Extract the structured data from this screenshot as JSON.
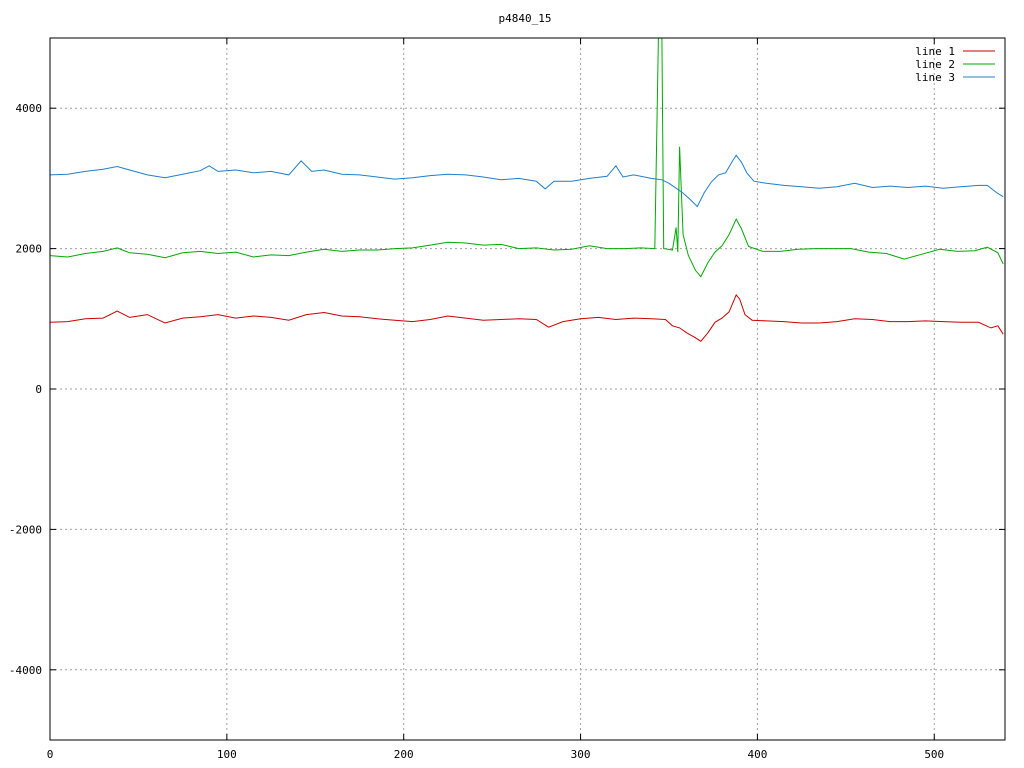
{
  "chart_data": {
    "type": "line",
    "title": "p4840_15",
    "xlabel": "",
    "ylabel": "",
    "xlim": [
      0,
      540
    ],
    "ylim": [
      -5000,
      5000
    ],
    "x_ticks": [
      0,
      100,
      200,
      300,
      400,
      500
    ],
    "y_ticks": [
      -4000,
      -2000,
      0,
      2000,
      4000
    ],
    "grid": true,
    "legend_position": "top-right",
    "series": [
      {
        "name": "line 1",
        "color": "#cc0000",
        "points": [
          [
            0,
            950
          ],
          [
            10,
            960
          ],
          [
            20,
            1000
          ],
          [
            30,
            1010
          ],
          [
            38,
            1110
          ],
          [
            45,
            1020
          ],
          [
            55,
            1060
          ],
          [
            65,
            940
          ],
          [
            75,
            1010
          ],
          [
            85,
            1030
          ],
          [
            95,
            1060
          ],
          [
            105,
            1010
          ],
          [
            115,
            1040
          ],
          [
            125,
            1020
          ],
          [
            135,
            980
          ],
          [
            145,
            1060
          ],
          [
            155,
            1090
          ],
          [
            165,
            1040
          ],
          [
            175,
            1030
          ],
          [
            185,
            1000
          ],
          [
            195,
            980
          ],
          [
            205,
            960
          ],
          [
            215,
            990
          ],
          [
            225,
            1040
          ],
          [
            235,
            1010
          ],
          [
            245,
            980
          ],
          [
            255,
            990
          ],
          [
            265,
            1000
          ],
          [
            275,
            990
          ],
          [
            282,
            880
          ],
          [
            290,
            960
          ],
          [
            300,
            1000
          ],
          [
            310,
            1020
          ],
          [
            320,
            990
          ],
          [
            330,
            1010
          ],
          [
            340,
            1000
          ],
          [
            348,
            990
          ],
          [
            352,
            900
          ],
          [
            356,
            870
          ],
          [
            360,
            800
          ],
          [
            365,
            730
          ],
          [
            368,
            680
          ],
          [
            372,
            800
          ],
          [
            376,
            950
          ],
          [
            380,
            1010
          ],
          [
            384,
            1100
          ],
          [
            388,
            1340
          ],
          [
            390,
            1280
          ],
          [
            393,
            1060
          ],
          [
            397,
            980
          ],
          [
            405,
            970
          ],
          [
            415,
            960
          ],
          [
            425,
            940
          ],
          [
            435,
            940
          ],
          [
            445,
            960
          ],
          [
            455,
            1000
          ],
          [
            465,
            990
          ],
          [
            475,
            960
          ],
          [
            485,
            960
          ],
          [
            495,
            970
          ],
          [
            505,
            960
          ],
          [
            515,
            950
          ],
          [
            525,
            950
          ],
          [
            532,
            870
          ],
          [
            536,
            900
          ],
          [
            539,
            780
          ]
        ]
      },
      {
        "name": "line 2",
        "color": "#00aa00",
        "points": [
          [
            0,
            1900
          ],
          [
            10,
            1880
          ],
          [
            20,
            1930
          ],
          [
            30,
            1960
          ],
          [
            38,
            2010
          ],
          [
            45,
            1940
          ],
          [
            55,
            1920
          ],
          [
            65,
            1870
          ],
          [
            75,
            1940
          ],
          [
            85,
            1960
          ],
          [
            95,
            1930
          ],
          [
            105,
            1950
          ],
          [
            115,
            1880
          ],
          [
            125,
            1910
          ],
          [
            135,
            1900
          ],
          [
            145,
            1950
          ],
          [
            155,
            1990
          ],
          [
            165,
            1960
          ],
          [
            175,
            1980
          ],
          [
            185,
            1980
          ],
          [
            195,
            2000
          ],
          [
            205,
            2010
          ],
          [
            215,
            2050
          ],
          [
            225,
            2090
          ],
          [
            235,
            2080
          ],
          [
            245,
            2050
          ],
          [
            255,
            2060
          ],
          [
            265,
            2000
          ],
          [
            275,
            2010
          ],
          [
            285,
            1980
          ],
          [
            295,
            1990
          ],
          [
            305,
            2040
          ],
          [
            315,
            2000
          ],
          [
            325,
            2000
          ],
          [
            334,
            2010
          ],
          [
            342,
            2000
          ],
          [
            344,
            5000
          ],
          [
            346,
            5000
          ],
          [
            347,
            2000
          ],
          [
            352,
            1980
          ],
          [
            354,
            2300
          ],
          [
            355,
            1950
          ],
          [
            356,
            3450
          ],
          [
            357,
            2800
          ],
          [
            358,
            2200
          ],
          [
            361,
            1900
          ],
          [
            365,
            1690
          ],
          [
            368,
            1600
          ],
          [
            372,
            1800
          ],
          [
            376,
            1950
          ],
          [
            380,
            2040
          ],
          [
            384,
            2200
          ],
          [
            388,
            2420
          ],
          [
            391,
            2280
          ],
          [
            395,
            2030
          ],
          [
            403,
            1960
          ],
          [
            413,
            1960
          ],
          [
            423,
            1990
          ],
          [
            433,
            2000
          ],
          [
            443,
            2000
          ],
          [
            453,
            2000
          ],
          [
            463,
            1950
          ],
          [
            473,
            1930
          ],
          [
            483,
            1850
          ],
          [
            493,
            1920
          ],
          [
            503,
            1990
          ],
          [
            513,
            1960
          ],
          [
            523,
            1970
          ],
          [
            530,
            2020
          ],
          [
            536,
            1940
          ],
          [
            539,
            1780
          ]
        ]
      },
      {
        "name": "line 3",
        "color": "#1f7fcc",
        "points": [
          [
            0,
            3050
          ],
          [
            10,
            3060
          ],
          [
            20,
            3100
          ],
          [
            30,
            3130
          ],
          [
            38,
            3170
          ],
          [
            45,
            3120
          ],
          [
            55,
            3050
          ],
          [
            65,
            3010
          ],
          [
            75,
            3060
          ],
          [
            85,
            3110
          ],
          [
            90,
            3180
          ],
          [
            95,
            3100
          ],
          [
            105,
            3120
          ],
          [
            115,
            3080
          ],
          [
            125,
            3100
          ],
          [
            135,
            3050
          ],
          [
            142,
            3250
          ],
          [
            148,
            3100
          ],
          [
            155,
            3120
          ],
          [
            165,
            3060
          ],
          [
            175,
            3050
          ],
          [
            185,
            3020
          ],
          [
            195,
            2990
          ],
          [
            205,
            3010
          ],
          [
            215,
            3040
          ],
          [
            225,
            3060
          ],
          [
            235,
            3050
          ],
          [
            245,
            3020
          ],
          [
            255,
            2980
          ],
          [
            265,
            3000
          ],
          [
            275,
            2960
          ],
          [
            280,
            2850
          ],
          [
            285,
            2960
          ],
          [
            295,
            2960
          ],
          [
            305,
            3000
          ],
          [
            315,
            3030
          ],
          [
            320,
            3180
          ],
          [
            324,
            3020
          ],
          [
            330,
            3050
          ],
          [
            340,
            3000
          ],
          [
            346,
            2980
          ],
          [
            350,
            2930
          ],
          [
            354,
            2860
          ],
          [
            358,
            2790
          ],
          [
            362,
            2700
          ],
          [
            366,
            2600
          ],
          [
            370,
            2800
          ],
          [
            374,
            2950
          ],
          [
            378,
            3050
          ],
          [
            382,
            3080
          ],
          [
            386,
            3250
          ],
          [
            388,
            3330
          ],
          [
            391,
            3230
          ],
          [
            394,
            3080
          ],
          [
            398,
            2960
          ],
          [
            405,
            2930
          ],
          [
            415,
            2900
          ],
          [
            425,
            2880
          ],
          [
            435,
            2860
          ],
          [
            445,
            2880
          ],
          [
            455,
            2930
          ],
          [
            465,
            2870
          ],
          [
            475,
            2890
          ],
          [
            485,
            2870
          ],
          [
            495,
            2890
          ],
          [
            505,
            2860
          ],
          [
            515,
            2880
          ],
          [
            525,
            2900
          ],
          [
            530,
            2900
          ],
          [
            535,
            2800
          ],
          [
            539,
            2740
          ]
        ]
      }
    ]
  }
}
